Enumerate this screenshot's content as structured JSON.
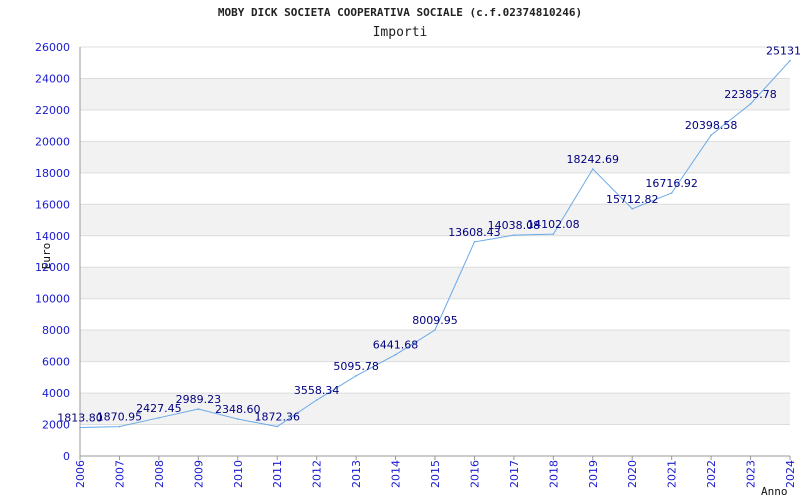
{
  "chart_data": {
    "type": "line",
    "title": "MOBY DICK SOCIETA COOPERATIVA SOCIALE (c.f.02374810246)",
    "subtitle": "Importi",
    "ylabel": "Euro",
    "xlabel": "Anno",
    "ylim": [
      0,
      26000
    ],
    "ytick_step": 2000,
    "grid": true,
    "x": [
      "2006",
      "2007",
      "2008",
      "2009",
      "2010",
      "2011",
      "2012",
      "2013",
      "2014",
      "2015",
      "2016",
      "2017",
      "2018",
      "2019",
      "2020",
      "2021",
      "2022",
      "2023",
      "2024"
    ],
    "values": [
      1813.8,
      1870.95,
      2427.45,
      2989.23,
      2348.6,
      1872.36,
      3558.34,
      5095.78,
      6441.68,
      8009.95,
      13608.43,
      14038.08,
      14102.08,
      18242.69,
      15712.82,
      16716.92,
      20398.58,
      22385.78,
      25131
    ],
    "data_labels": [
      "1813.80",
      "1870.95",
      "2427.45",
      "2989.23",
      "2348.60",
      "1872.36",
      "3558.34",
      "5095.78",
      "6441.68",
      "8009.95",
      "13608.43",
      "14038.08",
      "14102.08",
      "18242.69",
      "15712.82",
      "16716.92",
      "20398.58",
      "22385.78",
      "25131."
    ],
    "colors": {
      "line": "#6aa9e8",
      "band": "#f2f2f2",
      "grid": "#dddddd",
      "axis": "#999999",
      "tick_text": "#1a1ad0",
      "data_text": "#000080"
    }
  }
}
